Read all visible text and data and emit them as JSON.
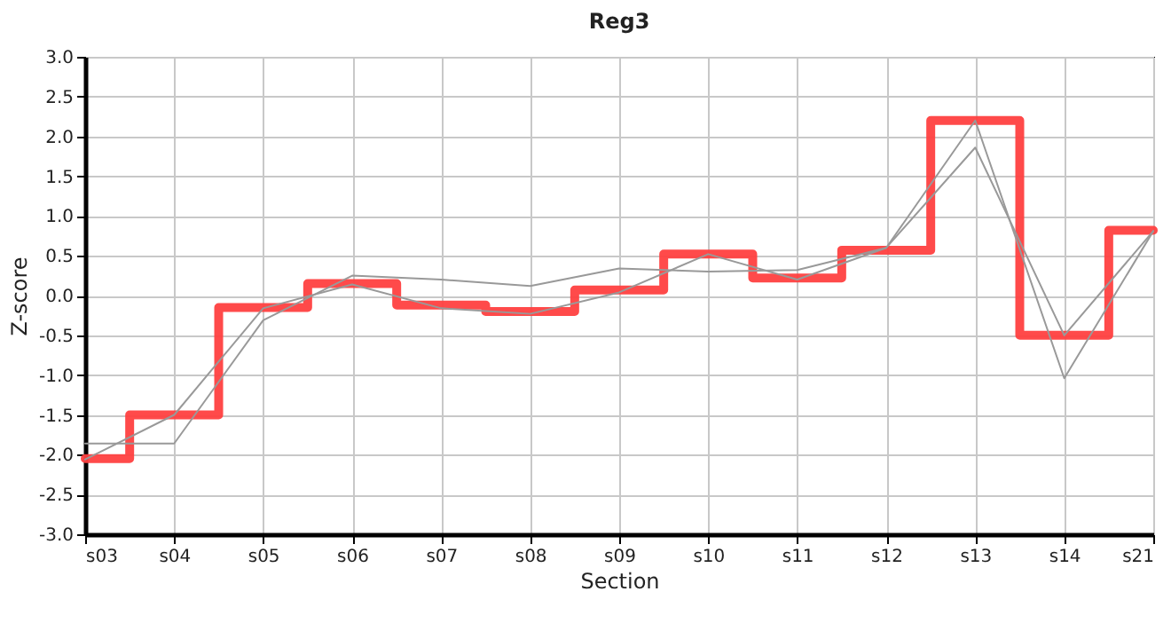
{
  "chart_data": {
    "type": "line",
    "title": "Reg3",
    "xlabel": "Section",
    "ylabel": "Z-score",
    "categories": [
      "s03",
      "s04",
      "s05",
      "s06",
      "s07",
      "s08",
      "s09",
      "s10",
      "s11",
      "s12",
      "s13",
      "s14",
      "s21"
    ],
    "series": [
      {
        "type": "step",
        "color": "#ff4040",
        "values": [
          -2.05,
          -1.5,
          -0.15,
          0.15,
          -0.12,
          -0.2,
          0.07,
          0.52,
          0.22,
          0.57,
          2.2,
          -0.5,
          0.82
        ]
      },
      {
        "type": "line",
        "color": "#999999",
        "values": [
          -1.86,
          -1.86,
          -0.31,
          0.25,
          0.2,
          0.12,
          0.34,
          0.3,
          0.32,
          0.6,
          1.86,
          -0.5,
          0.81
        ]
      },
      {
        "type": "line",
        "color": "#999999",
        "values": [
          -2.06,
          -1.5,
          -0.16,
          0.14,
          -0.16,
          -0.23,
          0.04,
          0.52,
          0.2,
          0.6,
          2.2,
          -1.04,
          0.81
        ]
      }
    ],
    "ylim": [
      -3,
      3
    ],
    "yticks": [
      {
        "value": -3,
        "label": "-3.0"
      },
      {
        "value": -2.5,
        "label": "-2.5"
      },
      {
        "value": -2,
        "label": "-2.0"
      },
      {
        "value": -1.5,
        "label": "-1.5"
      },
      {
        "value": -1,
        "label": "-1.0"
      },
      {
        "value": -0.5,
        "label": "-0.5"
      },
      {
        "value": 0,
        "label": "0.0"
      },
      {
        "value": 0.5,
        "label": "0.5"
      },
      {
        "value": 1,
        "label": "1.0"
      },
      {
        "value": 1.5,
        "label": "1.5"
      },
      {
        "value": 2,
        "label": "2.0"
      },
      {
        "value": 2.5,
        "label": "2.5"
      },
      {
        "value": 3,
        "label": "3.0"
      }
    ],
    "grid": true,
    "legend": false,
    "marker": "none",
    "line_style": "solid"
  }
}
